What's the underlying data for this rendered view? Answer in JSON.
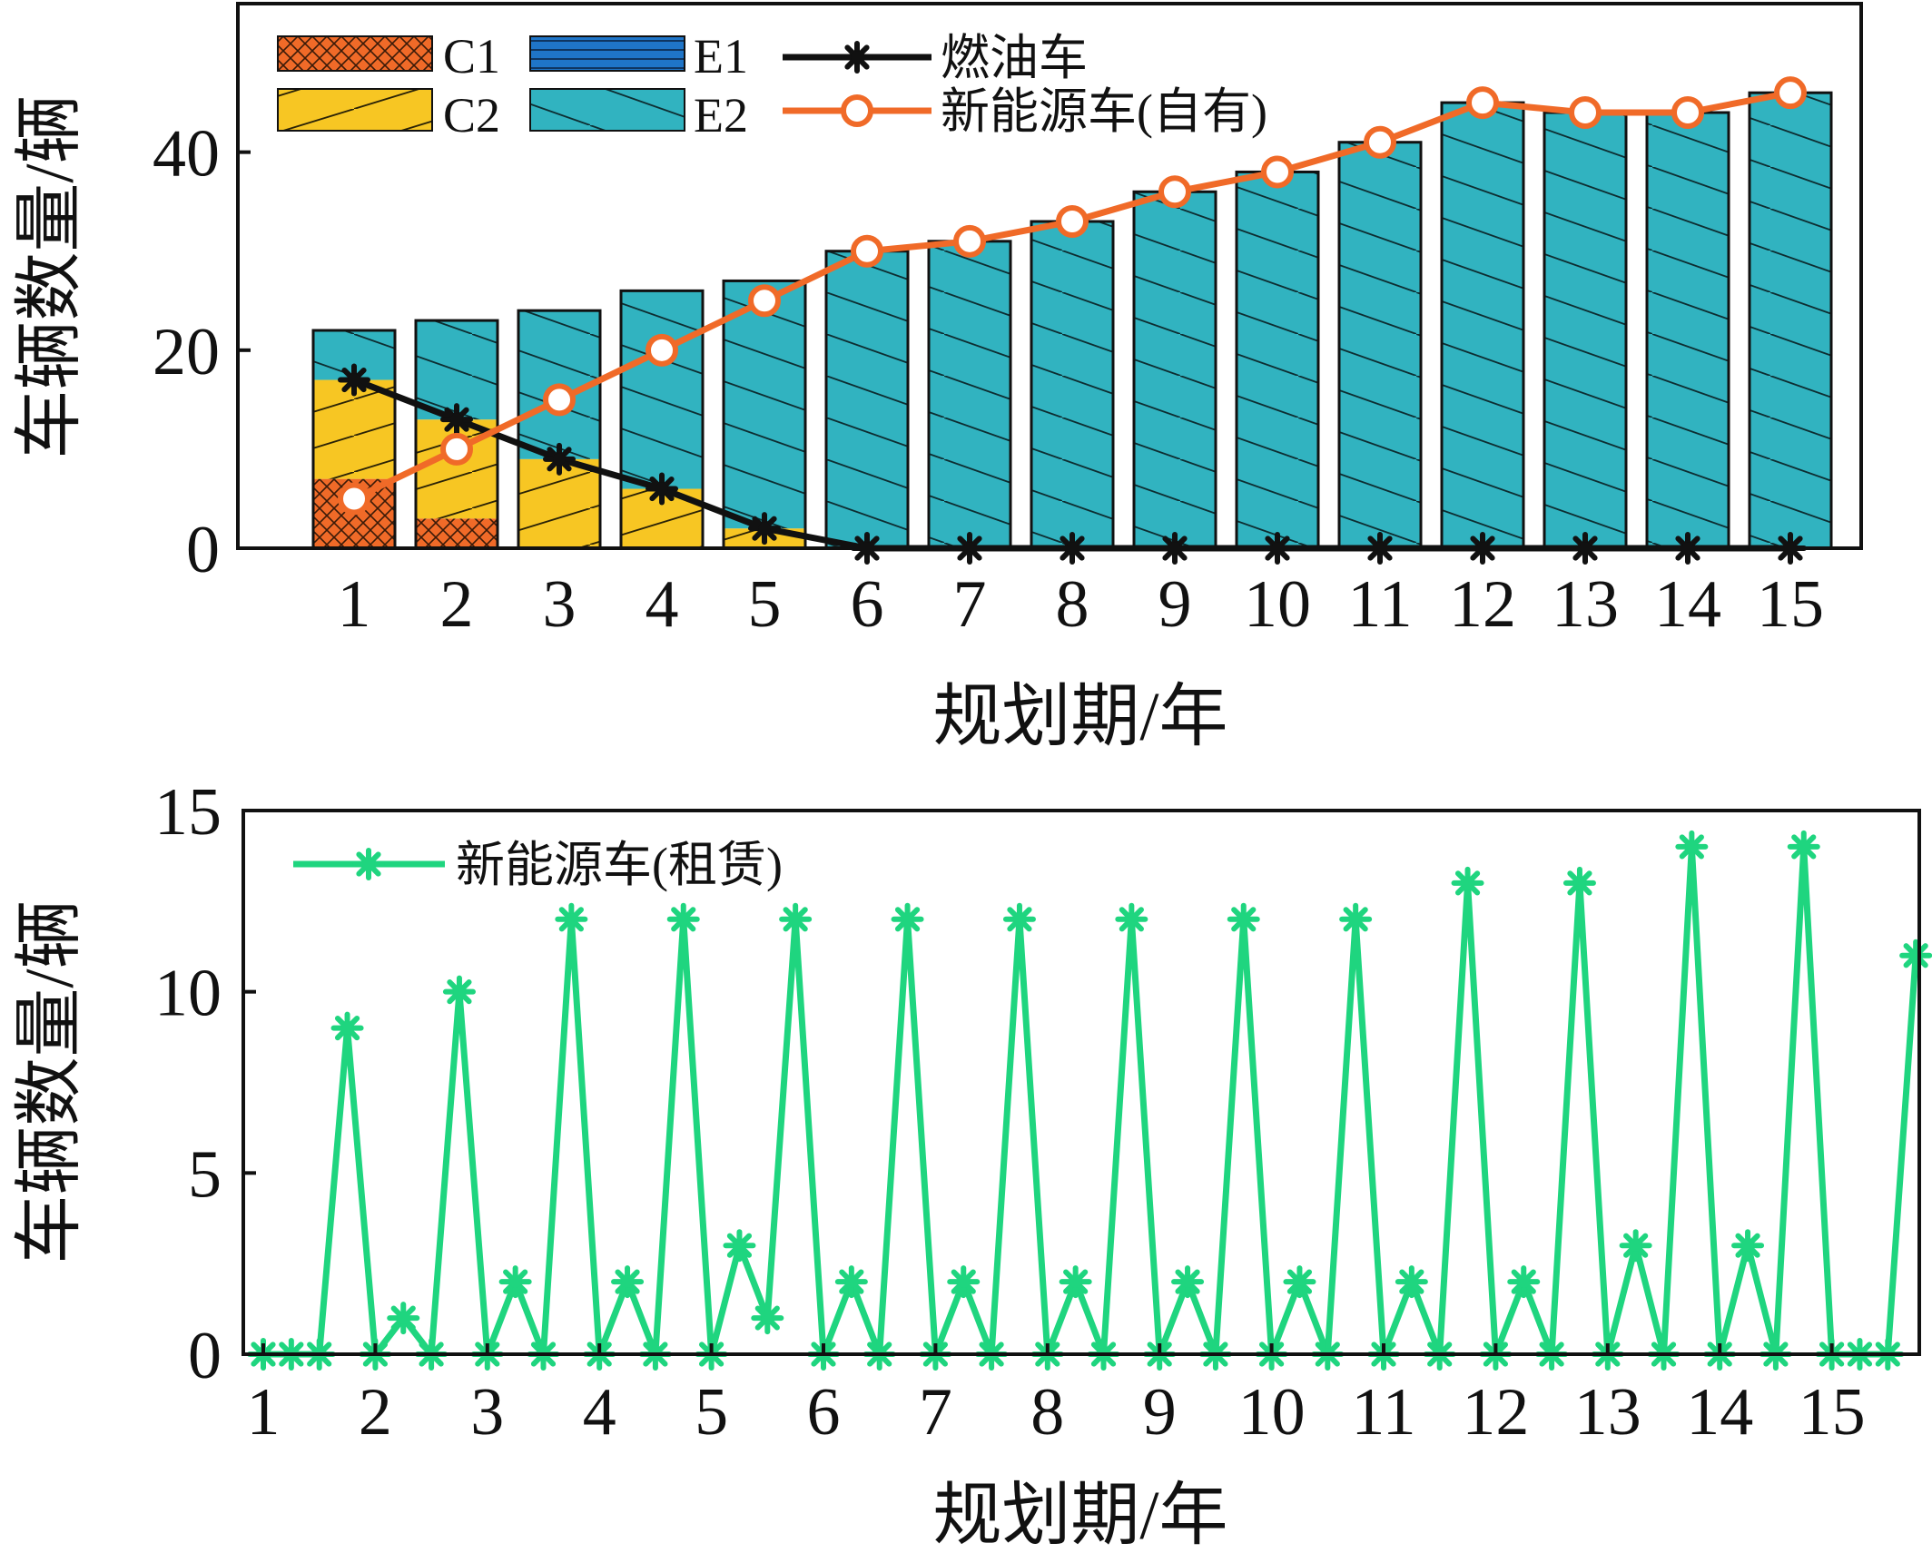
{
  "chart_data": [
    {
      "type": "bar",
      "stacked": true,
      "xlabel": "规划期/年",
      "ylabel": "车辆数量/辆",
      "ylim": [
        0,
        55
      ],
      "yticks": [
        "0",
        "20",
        "40"
      ],
      "categories": [
        "1",
        "2",
        "3",
        "4",
        "5",
        "6",
        "7",
        "8",
        "9",
        "10",
        "11",
        "12",
        "13",
        "14",
        "15"
      ],
      "legend_position": "top-left",
      "series": [
        {
          "name": "C1",
          "kind": "bar",
          "color": "#f06a28",
          "pattern": "cross-hatch",
          "values": [
            7,
            3,
            0,
            0,
            0,
            0,
            0,
            0,
            0,
            0,
            0,
            0,
            0,
            0,
            0
          ]
        },
        {
          "name": "C2",
          "kind": "bar",
          "color": "#f7c623",
          "pattern": "diagonal-up",
          "values": [
            10,
            10,
            9,
            6,
            2,
            0,
            0,
            0,
            0,
            0,
            0,
            0,
            0,
            0,
            0
          ]
        },
        {
          "name": "E1",
          "kind": "bar",
          "color": "#1f75c8",
          "pattern": "horizontal",
          "values": [
            0,
            0,
            0,
            0,
            0,
            0,
            0,
            0,
            0,
            0,
            0,
            0,
            0,
            0,
            0
          ]
        },
        {
          "name": "E2",
          "kind": "bar",
          "color": "#31b3c0",
          "pattern": "diagonal-down",
          "values": [
            5,
            10,
            15,
            20,
            25,
            30,
            31,
            33,
            36,
            38,
            41,
            45,
            44,
            44,
            46
          ]
        },
        {
          "name": "燃油车",
          "kind": "line",
          "color": "#111111",
          "marker": "asterisk",
          "values": [
            17,
            13,
            9,
            6,
            2,
            0,
            0,
            0,
            0,
            0,
            0,
            0,
            0,
            0,
            0
          ]
        },
        {
          "name": "新能源车(自有)",
          "kind": "line",
          "color": "#f06a28",
          "marker": "circle",
          "values": [
            5,
            10,
            15,
            20,
            25,
            30,
            31,
            33,
            36,
            38,
            41,
            45,
            44,
            44,
            46
          ]
        }
      ]
    },
    {
      "type": "line",
      "xlabel": "规划期/年",
      "ylabel": "车辆数量/辆",
      "ylim": [
        0,
        15
      ],
      "yticks": [
        "0",
        "5",
        "10",
        "15"
      ],
      "xticks": [
        "1",
        "2",
        "3",
        "4",
        "5",
        "6",
        "7",
        "8",
        "9",
        "10",
        "11",
        "12",
        "13",
        "14",
        "15"
      ],
      "legend_position": "top-left",
      "series": [
        {
          "name": "新能源车(租赁)",
          "color": "#1fd57f",
          "marker": "asterisk",
          "x": [
            1,
            1.25,
            1.5,
            1.75,
            2,
            2.25,
            2.5,
            2.75,
            3,
            3.25,
            3.5,
            3.75,
            4,
            4.25,
            4.5,
            4.75,
            5,
            5.25,
            5.5,
            5.75,
            6,
            6.25,
            6.5,
            6.75,
            7,
            7.25,
            7.5,
            7.75,
            8,
            8.25,
            8.5,
            8.75,
            9,
            9.25,
            9.5,
            9.75,
            10,
            10.25,
            10.5,
            10.75,
            11,
            11.25,
            11.5,
            11.75,
            12,
            12.25,
            12.5,
            12.75,
            13,
            13.25,
            13.5,
            13.75,
            14,
            14.25,
            14.5,
            14.75,
            15,
            15.25,
            15.5,
            15.75
          ],
          "values": [
            0,
            0,
            0,
            9,
            0,
            1,
            0,
            10,
            0,
            2,
            0,
            12,
            0,
            2,
            0,
            12,
            0,
            3,
            1,
            12,
            0,
            2,
            0,
            12,
            0,
            2,
            0,
            12,
            0,
            2,
            0,
            12,
            0,
            2,
            0,
            12,
            0,
            2,
            0,
            12,
            0,
            2,
            0,
            13,
            0,
            2,
            0,
            13,
            0,
            3,
            0,
            14,
            0,
            3,
            0,
            14,
            0,
            0,
            0,
            11
          ]
        }
      ]
    }
  ]
}
